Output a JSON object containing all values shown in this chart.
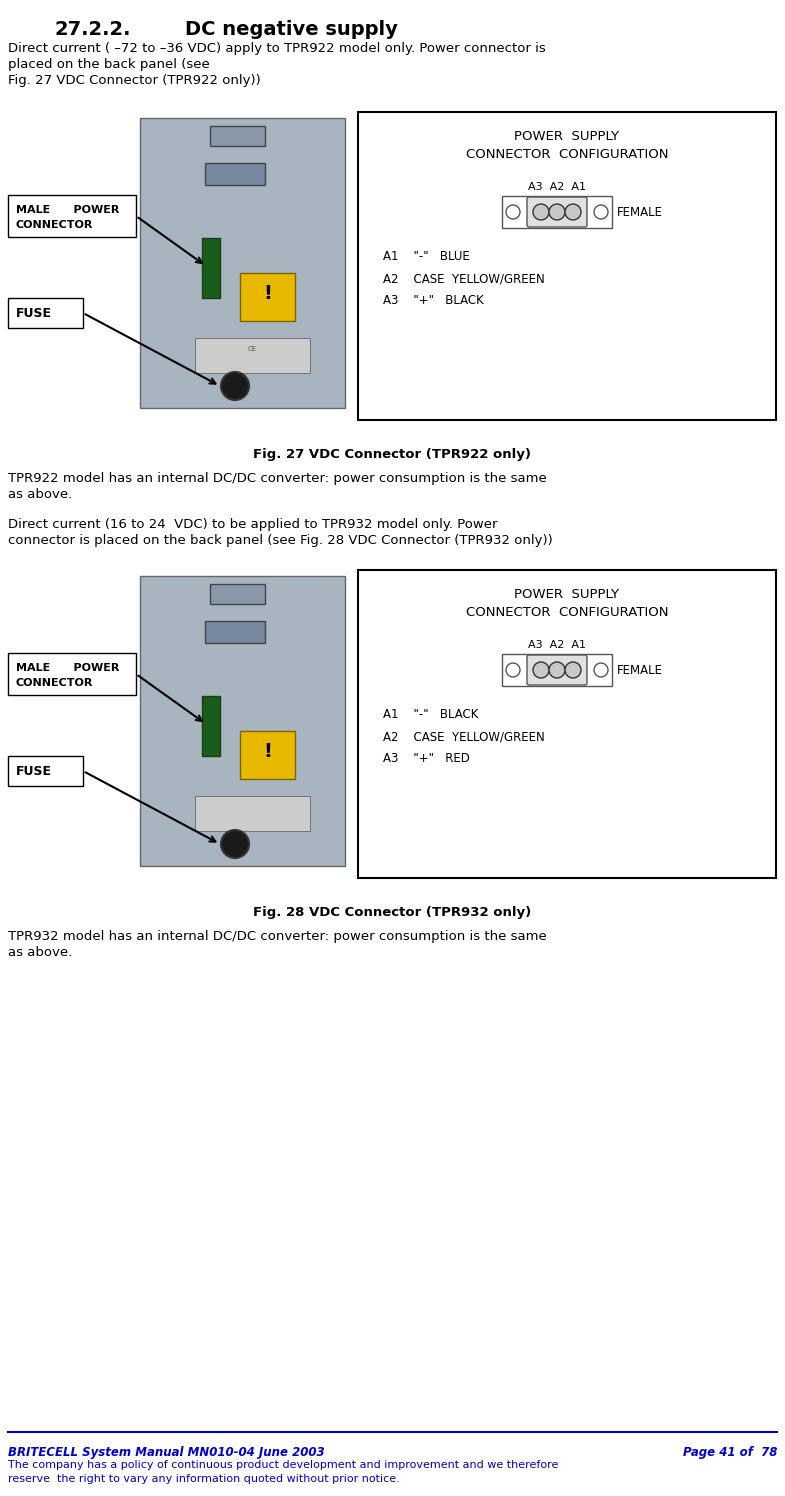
{
  "bg": "#FFFFFF",
  "text_color": "#000000",
  "footer_color": "#0000CD",
  "title_num": "27.2.2.",
  "title_text": "DC negative supply",
  "para1_line1": "Direct current ( –72 to –36 VDC) apply to TPR922 model only. Power connector is",
  "para1_line2": "placed on the back panel (see",
  "para1_line3": "Fig. 27 VDC Connector (TPR922 only))",
  "fig1_caption": "Fig. 27 VDC Connector (TPR922 only)",
  "para2_line1": "TPR922 model has an internal DC/DC converter: power consumption is the same",
  "para2_line2": "as above.",
  "para3_line1": "Direct current (16 to 24  VDC) to be applied to TPR932 model only. Power",
  "para3_line2": "connector is placed on the back panel (see Fig. 28 VDC Connector (TPR932 only))",
  "fig2_caption": "Fig. 28 VDC Connector (TPR932 only)",
  "para4_line1": "TPR932 model has an internal DC/DC converter: power consumption is the same",
  "para4_line2": "as above.",
  "ps_line1": "POWER  SUPPLY",
  "ps_line2": "CONNECTOR  CONFIGURATION",
  "ps_a3a2a1": "A3  A2  A1",
  "ps_female": "FEMALE",
  "wire_922": [
    "A1    \"-\"   BLUE",
    "A2    CASE  YELLOW/GREEN",
    "A3    \"+\"   BLACK"
  ],
  "wire_932": [
    "A1    \"-\"   BLACK",
    "A2    CASE  YELLOW/GREEN",
    "A3    \"+\"   RED"
  ],
  "lbl_male": "MALE      POWER\nCONNECTOR",
  "lbl_fuse": "FUSE",
  "footer_left": "BRITECELL System Manual MN010-04 June 2003",
  "footer_right": "Page 41 of  78",
  "footer_sub1": "The company has a policy of continuous product development and improvement and we therefore",
  "footer_sub2": "reserve  the right to vary any information quoted without prior notice.",
  "photo_color": "#a8b5c0",
  "photo_edge": "#666666",
  "photo_detail1": "#7a8fa0",
  "photo_detail2": "#6a8090",
  "green_block": "#1a5c1a",
  "yellow_warn": "#e8b800",
  "barcode_color": "#cccccc",
  "fuse_color": "#1a1a1a"
}
